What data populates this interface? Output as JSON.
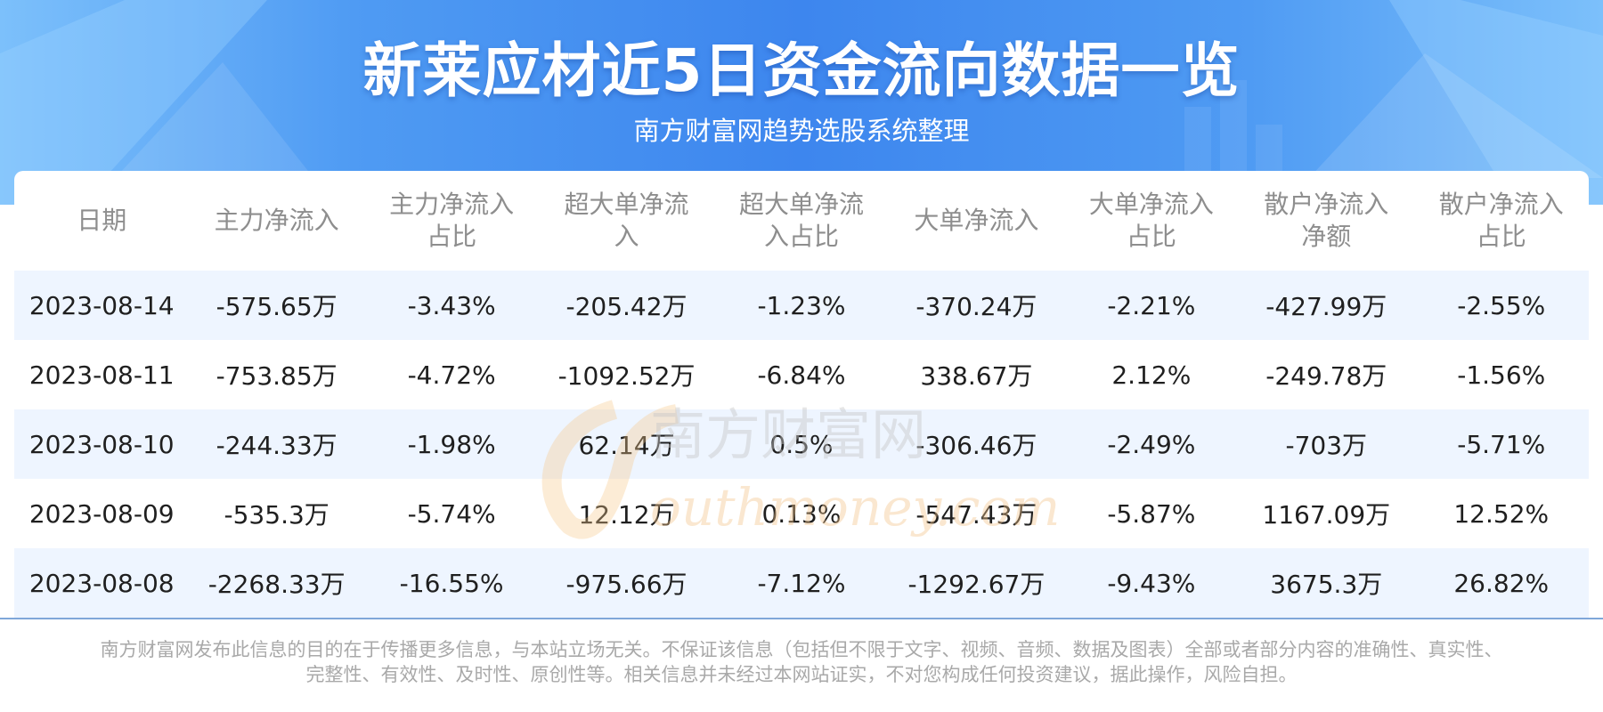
{
  "header": {
    "title": "新莱应材近5日资金流向数据一览",
    "subtitle": "南方财富网趋势选股系统整理"
  },
  "table": {
    "columns": [
      {
        "line1": "日期",
        "line2": ""
      },
      {
        "line1": "主力净流入",
        "line2": ""
      },
      {
        "line1": "主力净流入",
        "line2": "占比"
      },
      {
        "line1": "超大单净流",
        "line2": "入"
      },
      {
        "line1": "超大单净流",
        "line2": "入占比"
      },
      {
        "line1": "大单净流入",
        "line2": ""
      },
      {
        "line1": "大单净流入",
        "line2": "占比"
      },
      {
        "line1": "散户净流入",
        "line2": "净额"
      },
      {
        "line1": "散户净流入",
        "line2": "占比"
      }
    ],
    "rows": [
      [
        "2023-08-14",
        "-575.65万",
        "-3.43%",
        "-205.42万",
        "-1.23%",
        "-370.24万",
        "-2.21%",
        "-427.99万",
        "-2.55%"
      ],
      [
        "2023-08-11",
        "-753.85万",
        "-4.72%",
        "-1092.52万",
        "-6.84%",
        "338.67万",
        "2.12%",
        "-249.78万",
        "-1.56%"
      ],
      [
        "2023-08-10",
        "-244.33万",
        "-1.98%",
        "62.14万",
        "0.5%",
        "-306.46万",
        "-2.49%",
        "-703万",
        "-5.71%"
      ],
      [
        "2023-08-09",
        "-535.3万",
        "-5.74%",
        "12.12万",
        "0.13%",
        "-547.43万",
        "-5.87%",
        "1167.09万",
        "12.52%"
      ],
      [
        "2023-08-08",
        "-2268.33万",
        "-16.55%",
        "-975.66万",
        "-7.12%",
        "-1292.67万",
        "-9.43%",
        "3675.3万",
        "26.82%"
      ]
    ]
  },
  "watermark": {
    "text_cn": "南方财富网",
    "text_en": "outhmoney.com"
  },
  "footer": {
    "line1": "南方财富网发布此信息的目的在于传播更多信息，与本站立场无关。不保证该信息（包括但不限于文字、视频、音频、数据及图表）全部或者部分内容的准确性、真实性、",
    "line2": "完整性、有效性、及时性、原创性等。相关信息并未经过本网站证实，不对您构成任何投资建议，据此操作，风险自担。"
  },
  "colors": {
    "hero_blue": "#3d86ee",
    "row_stripe": "#eef5ff",
    "header_text": "#8e8e8e",
    "body_text": "#1f1f1f"
  }
}
